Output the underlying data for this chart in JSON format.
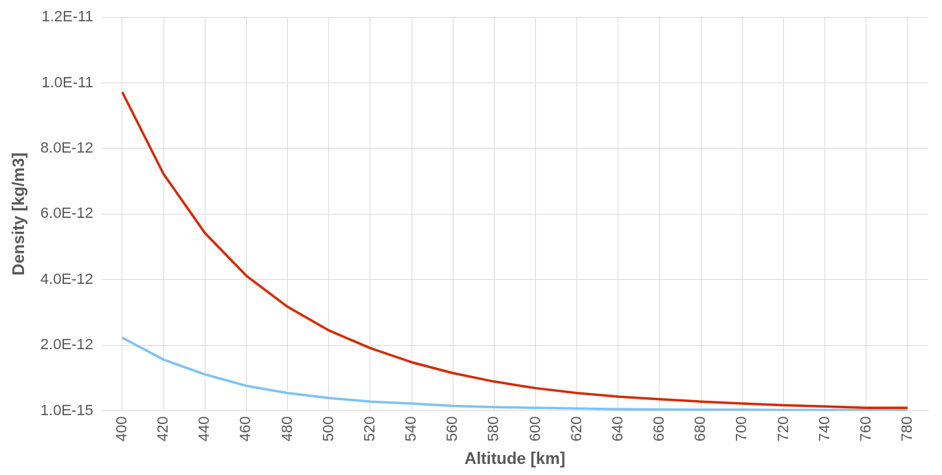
{
  "chart_data": {
    "type": "line",
    "xlabel": "Altitude [km]",
    "ylabel": "Density [kg/m3]",
    "categories": [
      "400",
      "420",
      "440",
      "460",
      "480",
      "500",
      "520",
      "540",
      "560",
      "580",
      "600",
      "620",
      "640",
      "660",
      "680",
      "700",
      "720",
      "740",
      "760",
      "780"
    ],
    "series": [
      {
        "color": "#d42a00",
        "values": [
          9.72e-12,
          7.22e-12,
          5.42e-12,
          4.12e-12,
          3.17e-12,
          2.45e-12,
          1.91e-12,
          1.48e-12,
          1.15e-12,
          8.9e-13,
          6.9e-13,
          5.4e-13,
          4.3e-13,
          3.5e-13,
          2.8e-13,
          2.2e-13,
          1.7e-13,
          1.3e-13,
          9e-14,
          9e-14
        ]
      },
      {
        "color": "#7cc2f5",
        "values": [
          2.23e-12,
          1.56e-12,
          1.11e-12,
          7.6e-13,
          5.4e-13,
          3.9e-13,
          2.8e-13,
          2.2e-13,
          1.5e-13,
          1.1e-13,
          9e-14,
          7e-14,
          5e-14,
          4e-14,
          3e-14,
          3e-14,
          2e-14,
          2e-14,
          2e-14,
          1e-14
        ]
      }
    ],
    "ylim": [
      1e-15,
      1.2e-11
    ],
    "yticks": [
      {
        "value": 1e-15,
        "label": "1.0E-15"
      },
      {
        "value": 2e-12,
        "label": "2.0E-12"
      },
      {
        "value": 4e-12,
        "label": "4.0E-12"
      },
      {
        "value": 6e-12,
        "label": "6.0E-12"
      },
      {
        "value": 8e-12,
        "label": "8.0E-12"
      },
      {
        "value": 1e-11,
        "label": "1.0E-11"
      },
      {
        "value": 1.2e-11,
        "label": "1.2E-11"
      }
    ],
    "grid": true,
    "legend": false,
    "marker": "none",
    "line_style": "solid"
  }
}
